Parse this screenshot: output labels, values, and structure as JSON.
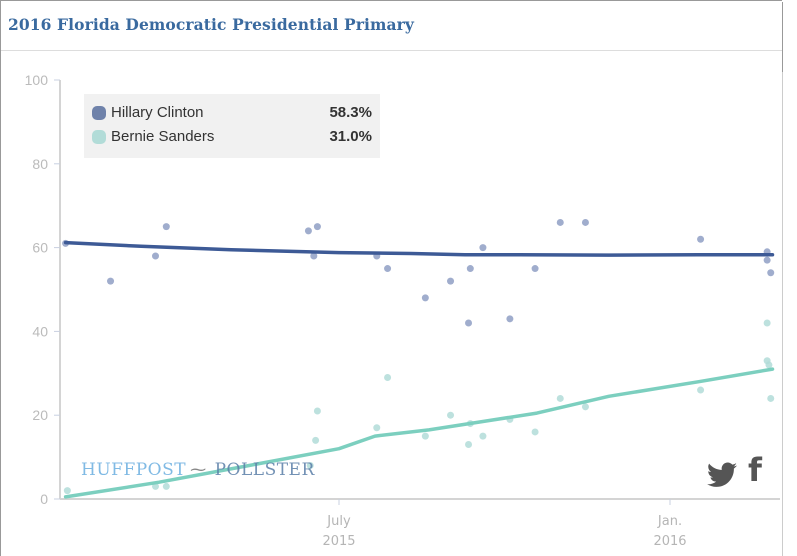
{
  "title": "2016 Florida Democratic Presidential Primary",
  "legend": [
    {
      "name": "Hillary Clinton",
      "value": "58.3%",
      "color": "#6f82aa"
    },
    {
      "name": "Bernie Sanders",
      "value": "31.0%",
      "color": "#b2dcd8"
    }
  ],
  "branding": {
    "huffpost": "HUFFPOST",
    "pollster": "POLLSTER",
    "mark": "⁓"
  },
  "social": {
    "twitter": "twitter-icon",
    "facebook": "f"
  },
  "chart_data": {
    "type": "scatter",
    "title": "2016 Florida Democratic Presidential Primary",
    "xlabel": "",
    "ylabel": "",
    "x_units": "days relative to July 1, 2015",
    "xlim": [
      -152,
      242
    ],
    "ylim": [
      0,
      100
    ],
    "yticks": [
      0,
      20,
      40,
      60,
      80,
      100
    ],
    "xticks": [
      {
        "x": 0,
        "label": "July",
        "sublabel": "2015"
      },
      {
        "x": 184,
        "label": "Jan.",
        "sublabel": "2016"
      }
    ],
    "grid": false,
    "legend_position": "top-left",
    "series": [
      {
        "name": "Hillary Clinton",
        "color": "#3d5a96",
        "point_color": "#8f9fc4",
        "final_estimate": 58.3,
        "points": [
          [
            -152,
            61
          ],
          [
            -127,
            52
          ],
          [
            -102,
            58
          ],
          [
            -96,
            65
          ],
          [
            -17,
            64
          ],
          [
            -14,
            58
          ],
          [
            -12,
            65
          ],
          [
            21,
            58
          ],
          [
            27,
            55
          ],
          [
            48,
            48
          ],
          [
            62,
            52
          ],
          [
            72,
            42
          ],
          [
            73,
            55
          ],
          [
            80,
            60
          ],
          [
            95,
            43
          ],
          [
            109,
            55
          ],
          [
            123,
            66
          ],
          [
            137,
            66
          ],
          [
            201,
            62
          ],
          [
            238,
            59
          ],
          [
            238,
            57
          ],
          [
            240,
            54
          ]
        ],
        "trend": [
          [
            -152,
            61.2
          ],
          [
            -110,
            60.3
          ],
          [
            -60,
            59.5
          ],
          [
            0,
            58.8
          ],
          [
            40,
            58.6
          ],
          [
            70,
            58.3
          ],
          [
            100,
            58.3
          ],
          [
            150,
            58.2
          ],
          [
            200,
            58.3
          ],
          [
            241,
            58.3
          ]
        ]
      },
      {
        "name": "Bernie Sanders",
        "color": "#7ccfbf",
        "point_color": "#b2dcd8",
        "final_estimate": 31.0,
        "points": [
          [
            -151,
            2
          ],
          [
            -102,
            3
          ],
          [
            -96,
            3
          ],
          [
            -16,
            8
          ],
          [
            -13,
            14
          ],
          [
            -12,
            21
          ],
          [
            21,
            17
          ],
          [
            27,
            29
          ],
          [
            48,
            15
          ],
          [
            62,
            20
          ],
          [
            72,
            13
          ],
          [
            73,
            18
          ],
          [
            80,
            15
          ],
          [
            95,
            19
          ],
          [
            109,
            16
          ],
          [
            123,
            24
          ],
          [
            137,
            22
          ],
          [
            201,
            26
          ],
          [
            238,
            42
          ],
          [
            238,
            33
          ],
          [
            239,
            32
          ],
          [
            240,
            24
          ]
        ],
        "trend": [
          [
            -152,
            0.5
          ],
          [
            -100,
            4
          ],
          [
            -50,
            8
          ],
          [
            0,
            12
          ],
          [
            20,
            15
          ],
          [
            50,
            16.5
          ],
          [
            80,
            18.5
          ],
          [
            110,
            20.5
          ],
          [
            150,
            24.5
          ],
          [
            200,
            28
          ],
          [
            241,
            31
          ]
        ]
      }
    ]
  }
}
